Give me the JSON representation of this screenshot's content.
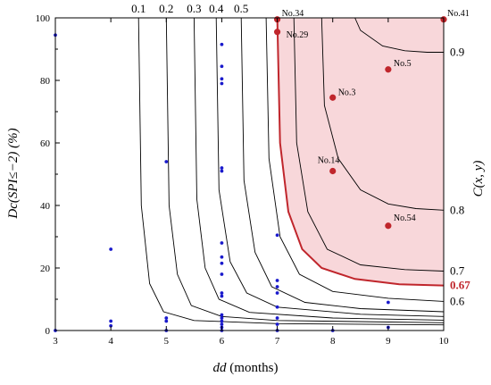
{
  "chart_data": {
    "type": "scatter",
    "xlabel_var": "dd",
    "xlabel_unit": " (months)",
    "ylabel_text": "Dc(SPI≤−2) (%)",
    "y2label_text": "C(x, y)",
    "xlim": [
      3,
      10
    ],
    "ylim": [
      0,
      100
    ],
    "x_ticks": [
      "3",
      "4",
      "5",
      "6",
      "7",
      "8",
      "9",
      "10"
    ],
    "y_ticks": [
      "0",
      "20",
      "40",
      "60",
      "80",
      "100"
    ],
    "region_color": "#f8d7da",
    "highlight_color": "#c0262c",
    "point_color": "#1a1acc",
    "contours": [
      {
        "level": 0.1,
        "label": "0.1",
        "label_side": "top",
        "points": [
          [
            4.5,
            100
          ],
          [
            4.55,
            40
          ],
          [
            4.7,
            15
          ],
          [
            4.95,
            6
          ],
          [
            5.5,
            3.2
          ],
          [
            7,
            2.2
          ],
          [
            10,
            1.8
          ]
        ]
      },
      {
        "level": 0.2,
        "label": "0.2",
        "label_side": "top",
        "points": [
          [
            5.0,
            100
          ],
          [
            5.05,
            40
          ],
          [
            5.2,
            18
          ],
          [
            5.45,
            8
          ],
          [
            6,
            4.5
          ],
          [
            7,
            3.2
          ],
          [
            10,
            2.5
          ]
        ]
      },
      {
        "level": 0.3,
        "label": "0.3",
        "label_side": "top",
        "points": [
          [
            5.5,
            100
          ],
          [
            5.55,
            42
          ],
          [
            5.7,
            20
          ],
          [
            5.95,
            10
          ],
          [
            6.5,
            5.8
          ],
          [
            8,
            4.0
          ],
          [
            10,
            3.3
          ]
        ]
      },
      {
        "level": 0.4,
        "label": "0.4",
        "label_side": "top",
        "points": [
          [
            5.9,
            100
          ],
          [
            5.95,
            45
          ],
          [
            6.15,
            22
          ],
          [
            6.45,
            12
          ],
          [
            7,
            7.5
          ],
          [
            8.5,
            5.2
          ],
          [
            10,
            4.5
          ]
        ]
      },
      {
        "level": 0.5,
        "label": "0.5",
        "label_side": "top",
        "points": [
          [
            6.35,
            100
          ],
          [
            6.4,
            48
          ],
          [
            6.6,
            25
          ],
          [
            6.9,
            14
          ],
          [
            7.5,
            9
          ],
          [
            8.5,
            7
          ],
          [
            10,
            6
          ]
        ]
      },
      {
        "level": 0.6,
        "label": "0.6",
        "label_side": "right",
        "points": [
          [
            6.8,
            100
          ],
          [
            6.85,
            55
          ],
          [
            7.05,
            30
          ],
          [
            7.4,
            18
          ],
          [
            8,
            12.5
          ],
          [
            9,
            10.3
          ],
          [
            10,
            9.3
          ]
        ]
      },
      {
        "level": 0.7,
        "label": "0.7",
        "label_side": "right",
        "points": [
          [
            7.3,
            100
          ],
          [
            7.35,
            60
          ],
          [
            7.55,
            38
          ],
          [
            7.9,
            26
          ],
          [
            8.5,
            21
          ],
          [
            9.3,
            19.5
          ],
          [
            10,
            19
          ]
        ]
      },
      {
        "level": 0.8,
        "label": "0.8",
        "label_side": "right",
        "points": [
          [
            7.8,
            100
          ],
          [
            7.85,
            72
          ],
          [
            8.1,
            55
          ],
          [
            8.5,
            45
          ],
          [
            9.0,
            40.5
          ],
          [
            9.5,
            39
          ],
          [
            10,
            38.5
          ]
        ]
      },
      {
        "level": 0.9,
        "label": "0.9",
        "label_side": "right",
        "points": [
          [
            8.4,
            100
          ],
          [
            8.5,
            96
          ],
          [
            8.9,
            91
          ],
          [
            9.3,
            89.5
          ],
          [
            9.7,
            89
          ],
          [
            10,
            89
          ]
        ]
      }
    ],
    "threshold": {
      "level": 0.67,
      "label": "0.67",
      "points": [
        [
          7.0,
          100
        ],
        [
          7.05,
          60
        ],
        [
          7.2,
          38
        ],
        [
          7.45,
          26
        ],
        [
          7.8,
          20
        ],
        [
          8.4,
          16.5
        ],
        [
          9.2,
          14.8
        ],
        [
          10,
          14.4
        ]
      ]
    },
    "labeled_points": [
      {
        "label": "No.34",
        "x": 7.0,
        "y": 99.5,
        "dx": 5,
        "dy": -4
      },
      {
        "label": "No.29",
        "x": 7.0,
        "y": 95.5,
        "dx": 10,
        "dy": 6
      },
      {
        "label": "No.41",
        "x": 10.0,
        "y": 99.5,
        "dx": 4,
        "dy": -4
      },
      {
        "label": "No.5",
        "x": 9.0,
        "y": 83.5,
        "dx": 6,
        "dy": -4
      },
      {
        "label": "No.3",
        "x": 8.0,
        "y": 74.5,
        "dx": 6,
        "dy": -3
      },
      {
        "label": "No.14",
        "x": 8.0,
        "y": 51,
        "dx": -17,
        "dy": -9
      },
      {
        "label": "No.54",
        "x": 9.0,
        "y": 33.5,
        "dx": 6,
        "dy": -6
      }
    ],
    "points": [
      {
        "x": 3,
        "y": 94.5
      },
      {
        "x": 3,
        "y": 0
      },
      {
        "x": 4,
        "y": 26
      },
      {
        "x": 4,
        "y": 3
      },
      {
        "x": 4,
        "y": 1.5
      },
      {
        "x": 5,
        "y": 54
      },
      {
        "x": 5,
        "y": 4
      },
      {
        "x": 5,
        "y": 3
      },
      {
        "x": 5,
        "y": 0
      },
      {
        "x": 6,
        "y": 91.5
      },
      {
        "x": 6,
        "y": 84.5
      },
      {
        "x": 6,
        "y": 80.5
      },
      {
        "x": 6,
        "y": 79
      },
      {
        "x": 6,
        "y": 52
      },
      {
        "x": 6,
        "y": 51
      },
      {
        "x": 6,
        "y": 28
      },
      {
        "x": 6,
        "y": 23.5
      },
      {
        "x": 6,
        "y": 21.5
      },
      {
        "x": 6,
        "y": 18
      },
      {
        "x": 6,
        "y": 12
      },
      {
        "x": 6,
        "y": 11
      },
      {
        "x": 6,
        "y": 5
      },
      {
        "x": 6,
        "y": 4
      },
      {
        "x": 6,
        "y": 3
      },
      {
        "x": 6,
        "y": 2
      },
      {
        "x": 6,
        "y": 1
      },
      {
        "x": 6,
        "y": 0
      },
      {
        "x": 7,
        "y": 30.5
      },
      {
        "x": 7,
        "y": 16
      },
      {
        "x": 7,
        "y": 14
      },
      {
        "x": 7,
        "y": 12
      },
      {
        "x": 7,
        "y": 7.5
      },
      {
        "x": 7,
        "y": 4
      },
      {
        "x": 7,
        "y": 2
      },
      {
        "x": 7,
        "y": 0
      },
      {
        "x": 8,
        "y": 0
      },
      {
        "x": 9,
        "y": 9
      },
      {
        "x": 9,
        "y": 1
      }
    ]
  }
}
